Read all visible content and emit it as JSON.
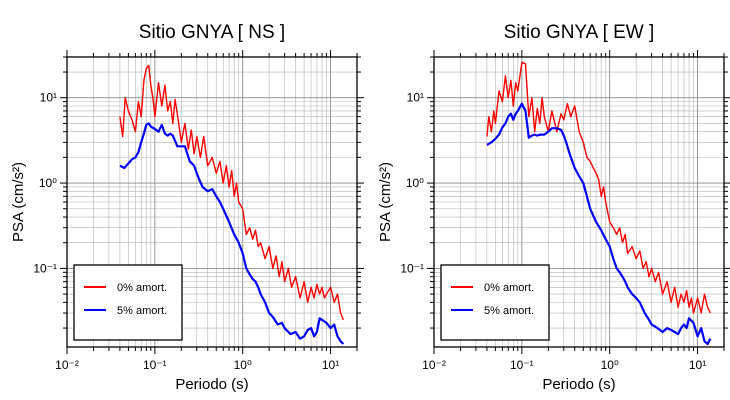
{
  "chart_data": [
    {
      "type": "line",
      "title": "Sitio GNYA [ NS ]",
      "xlabel": "Periodo (s)",
      "ylabel": "PSA (cm/s²)",
      "xscale": "log",
      "yscale": "log",
      "xlim": [
        0.01,
        20
      ],
      "ylim": [
        0.012,
        30
      ],
      "grid": true,
      "legend_position": "bottom-left",
      "x_tick_labels": [
        "10⁻²",
        "10⁻¹",
        "10⁰",
        "10¹"
      ],
      "y_tick_labels": [
        "10⁻¹",
        "10⁰",
        "10¹"
      ],
      "series": [
        {
          "name": "0% amort.",
          "color": "#ff0000",
          "x": [
            0.04,
            0.043,
            0.046,
            0.05,
            0.055,
            0.06,
            0.065,
            0.07,
            0.075,
            0.08,
            0.085,
            0.09,
            0.095,
            0.1,
            0.11,
            0.12,
            0.13,
            0.14,
            0.15,
            0.16,
            0.17,
            0.18,
            0.2,
            0.22,
            0.24,
            0.26,
            0.28,
            0.3,
            0.33,
            0.36,
            0.4,
            0.45,
            0.5,
            0.55,
            0.6,
            0.65,
            0.7,
            0.75,
            0.8,
            0.85,
            0.9,
            1.0,
            1.1,
            1.2,
            1.3,
            1.4,
            1.5,
            1.6,
            1.8,
            2.0,
            2.2,
            2.4,
            2.6,
            2.8,
            3.0,
            3.3,
            3.6,
            4.0,
            4.5,
            5.0,
            5.5,
            6.0,
            6.5,
            7.0,
            7.5,
            8.0,
            8.5,
            9.0,
            10.0,
            11.0,
            12.0,
            13.0,
            14.0
          ],
          "y": [
            6.0,
            3.5,
            10.0,
            7.0,
            5.5,
            4.0,
            9.0,
            6.0,
            16.0,
            22.0,
            24.0,
            14.0,
            10.0,
            6.0,
            15.0,
            8.0,
            14.0,
            7.0,
            9.0,
            5.0,
            9.5,
            6.5,
            3.0,
            5.0,
            2.5,
            4.2,
            2.2,
            3.5,
            2.0,
            3.5,
            1.6,
            2.0,
            1.3,
            1.8,
            1.0,
            1.6,
            0.9,
            1.4,
            0.7,
            1.0,
            0.6,
            0.5,
            0.25,
            0.3,
            0.22,
            0.28,
            0.18,
            0.2,
            0.13,
            0.18,
            0.1,
            0.14,
            0.08,
            0.12,
            0.07,
            0.1,
            0.06,
            0.08,
            0.045,
            0.07,
            0.04,
            0.06,
            0.045,
            0.065,
            0.05,
            0.06,
            0.045,
            0.05,
            0.06,
            0.04,
            0.05,
            0.03,
            0.025
          ]
        },
        {
          "name": "5% amort.",
          "color": "#0000ff",
          "x": [
            0.04,
            0.045,
            0.05,
            0.055,
            0.06,
            0.065,
            0.07,
            0.075,
            0.08,
            0.085,
            0.09,
            0.1,
            0.11,
            0.12,
            0.13,
            0.14,
            0.15,
            0.16,
            0.18,
            0.2,
            0.22,
            0.25,
            0.28,
            0.3,
            0.32,
            0.35,
            0.4,
            0.45,
            0.5,
            0.55,
            0.6,
            0.7,
            0.8,
            0.9,
            1.0,
            1.1,
            1.2,
            1.3,
            1.4,
            1.5,
            1.6,
            1.8,
            2.0,
            2.2,
            2.5,
            2.8,
            3.0,
            3.5,
            4.0,
            4.5,
            5.0,
            5.5,
            6.0,
            6.5,
            7.0,
            7.5,
            8.0,
            9.0,
            10.0,
            11.0,
            12.0,
            13.0,
            14.0
          ],
          "y": [
            1.6,
            1.5,
            1.7,
            1.9,
            2.0,
            2.3,
            3.0,
            3.8,
            4.8,
            5.0,
            4.6,
            4.3,
            4.0,
            4.8,
            3.8,
            3.6,
            3.8,
            3.6,
            2.7,
            2.7,
            2.7,
            1.8,
            1.6,
            1.3,
            1.1,
            0.9,
            0.8,
            0.85,
            0.7,
            0.6,
            0.5,
            0.35,
            0.25,
            0.2,
            0.15,
            0.1,
            0.085,
            0.075,
            0.07,
            0.06,
            0.05,
            0.04,
            0.03,
            0.027,
            0.022,
            0.023,
            0.02,
            0.017,
            0.018,
            0.015,
            0.016,
            0.019,
            0.02,
            0.016,
            0.018,
            0.026,
            0.025,
            0.023,
            0.02,
            0.022,
            0.016,
            0.014,
            0.013
          ]
        }
      ]
    },
    {
      "type": "line",
      "title": "Sitio GNYA [ EW ]",
      "xlabel": "Periodo (s)",
      "ylabel": "PSA (cm/s²)",
      "xscale": "log",
      "yscale": "log",
      "xlim": [
        0.01,
        20
      ],
      "ylim": [
        0.012,
        30
      ],
      "grid": true,
      "legend_position": "bottom-left",
      "x_tick_labels": [
        "10⁻²",
        "10⁻¹",
        "10⁰",
        "10¹"
      ],
      "y_tick_labels": [
        "10⁻¹",
        "10⁰",
        "10¹"
      ],
      "series": [
        {
          "name": "0% amort.",
          "color": "#ff0000",
          "x": [
            0.04,
            0.042,
            0.045,
            0.048,
            0.05,
            0.055,
            0.06,
            0.065,
            0.07,
            0.075,
            0.08,
            0.085,
            0.09,
            0.1,
            0.11,
            0.12,
            0.13,
            0.14,
            0.15,
            0.16,
            0.17,
            0.18,
            0.2,
            0.22,
            0.25,
            0.28,
            0.3,
            0.33,
            0.36,
            0.4,
            0.45,
            0.5,
            0.55,
            0.6,
            0.65,
            0.7,
            0.75,
            0.8,
            0.85,
            0.9,
            1.0,
            1.1,
            1.2,
            1.3,
            1.4,
            1.5,
            1.6,
            1.8,
            2.0,
            2.2,
            2.4,
            2.6,
            2.8,
            3.0,
            3.3,
            3.6,
            4.0,
            4.5,
            5.0,
            5.5,
            6.0,
            6.5,
            7.0,
            7.5,
            8.0,
            8.5,
            9.0,
            10.0,
            11.0,
            12.0,
            13.0,
            14.0
          ],
          "y": [
            3.5,
            6.0,
            4.0,
            7.0,
            5.0,
            12.0,
            9.0,
            18.0,
            10.0,
            16.0,
            8.0,
            15.0,
            12.0,
            26.0,
            25.0,
            6.0,
            10.0,
            4.0,
            7.5,
            5.0,
            10.0,
            6.0,
            4.0,
            7.0,
            4.0,
            6.5,
            5.5,
            8.5,
            6.0,
            8.0,
            4.0,
            3.0,
            2.0,
            1.8,
            1.5,
            1.3,
            1.1,
            0.7,
            0.9,
            0.6,
            0.35,
            0.3,
            0.25,
            0.3,
            0.2,
            0.25,
            0.15,
            0.18,
            0.13,
            0.16,
            0.1,
            0.12,
            0.08,
            0.1,
            0.07,
            0.09,
            0.05,
            0.07,
            0.04,
            0.06,
            0.035,
            0.05,
            0.04,
            0.055,
            0.035,
            0.045,
            0.03,
            0.045,
            0.03,
            0.05,
            0.035,
            0.03
          ]
        },
        {
          "name": "5% amort.",
          "color": "#0000ff",
          "x": [
            0.04,
            0.045,
            0.05,
            0.055,
            0.06,
            0.065,
            0.07,
            0.075,
            0.08,
            0.085,
            0.09,
            0.1,
            0.11,
            0.12,
            0.13,
            0.14,
            0.15,
            0.16,
            0.18,
            0.2,
            0.22,
            0.25,
            0.28,
            0.3,
            0.32,
            0.35,
            0.4,
            0.45,
            0.5,
            0.55,
            0.6,
            0.7,
            0.8,
            0.9,
            1.0,
            1.1,
            1.2,
            1.3,
            1.4,
            1.5,
            1.6,
            1.8,
            2.0,
            2.2,
            2.5,
            2.8,
            3.0,
            3.5,
            4.0,
            4.5,
            5.0,
            5.5,
            6.0,
            6.5,
            7.0,
            7.5,
            8.0,
            9.0,
            10.0,
            11.0,
            12.0,
            13.0,
            14.0
          ],
          "y": [
            2.8,
            3.0,
            3.3,
            3.7,
            4.5,
            5.0,
            6.0,
            6.5,
            5.5,
            6.5,
            7.0,
            8.5,
            7.0,
            3.4,
            3.6,
            3.7,
            3.6,
            3.7,
            3.7,
            4.0,
            4.4,
            4.4,
            4.2,
            3.6,
            3.0,
            2.2,
            1.5,
            1.2,
            1.0,
            0.7,
            0.5,
            0.35,
            0.28,
            0.22,
            0.18,
            0.13,
            0.1,
            0.09,
            0.08,
            0.07,
            0.06,
            0.05,
            0.045,
            0.04,
            0.03,
            0.025,
            0.022,
            0.02,
            0.018,
            0.02,
            0.019,
            0.018,
            0.017,
            0.02,
            0.022,
            0.02,
            0.026,
            0.023,
            0.016,
            0.02,
            0.014,
            0.013,
            0.015
          ]
        }
      ]
    }
  ]
}
